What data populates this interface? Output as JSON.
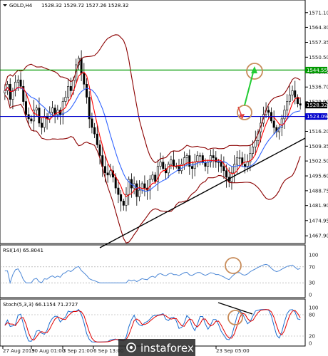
{
  "header": {
    "symbol": "GOLD,H4",
    "ohlc": "1528.32 1529.72 1527.26 1528.32"
  },
  "price_axis": {
    "ticks": [
      "1571.10",
      "1564.30",
      "1557.35",
      "1550.50",
      "1543.65",
      "1536.70",
      "1529.90",
      "1523.00",
      "1516.20",
      "1509.35",
      "1502.50",
      "1495.60",
      "1488.75",
      "1481.90",
      "1474.95",
      "1467.90"
    ],
    "current_price_tag": "1528.32",
    "hline_upper_tag": "1544.55",
    "hline_lower_tag": "1523.09"
  },
  "rsi": {
    "label": "RSI(14) 65.8041",
    "ticks": [
      "100",
      "70",
      "30",
      "0"
    ]
  },
  "stoch": {
    "label": "Stoch(5,3,3) 66.1154 71.2727",
    "ticks": [
      "100",
      "80",
      "20",
      "0"
    ]
  },
  "time_axis": {
    "labels": [
      "27 Aug 2019",
      "30 Aug 01:00",
      "3 Sep 21:00",
      "6 Sep 13:00",
      "",
      "",
      "",
      "23 Sep 05:00"
    ]
  },
  "watermark": {
    "text": "instaforex"
  },
  "colors": {
    "upper_line": "#009900",
    "lower_line": "#0000cc",
    "bollinger": "#8b0000",
    "ma_fast": "#ff0000",
    "ma_slow": "#3366ff",
    "rsi_line": "#4d88d6",
    "stoch_main": "#1c6fd0",
    "stoch_signal": "#e00000",
    "circle": "#c88c5a",
    "arrow_up": "#22cc33",
    "arrow_down": "#e04040",
    "trendline": "#000000",
    "watermark_bg": "#2a2a2a"
  },
  "chart_data": {
    "type": "candlestick",
    "symbol": "GOLD",
    "timeframe": "H4",
    "y_range": [
      1467.9,
      1571.1
    ],
    "horizontal_levels": [
      1544.55,
      1523.09
    ],
    "last_price": 1528.32,
    "close_path": [
      1535,
      1538,
      1531,
      1535,
      1539,
      1540,
      1537,
      1530,
      1524,
      1522,
      1521,
      1526,
      1527,
      1520,
      1518,
      1523,
      1522,
      1525,
      1527,
      1524,
      1526,
      1524,
      1530,
      1532,
      1537,
      1535,
      1540,
      1547,
      1550,
      1543,
      1538,
      1532,
      1522,
      1518,
      1515,
      1510,
      1505,
      1500,
      1497,
      1496,
      1498,
      1495,
      1490,
      1487,
      1484,
      1482,
      1487,
      1494,
      1490,
      1492,
      1486,
      1489,
      1492,
      1490,
      1489,
      1494,
      1496,
      1493,
      1500,
      1502,
      1499,
      1497,
      1501,
      1503,
      1500,
      1500,
      1498,
      1501,
      1504,
      1505,
      1500,
      1499,
      1502,
      1505,
      1505,
      1502,
      1500,
      1502,
      1505,
      1504,
      1502,
      1502,
      1500,
      1498,
      1495,
      1493,
      1497,
      1501,
      1504,
      1504,
      1501,
      1500,
      1502,
      1506,
      1509,
      1512,
      1516,
      1520,
      1524,
      1526,
      1525,
      1521,
      1518,
      1516,
      1518,
      1522,
      1526,
      1530,
      1533,
      1535,
      1532,
      1529,
      1528.3
    ],
    "rsi_current": 65.8041,
    "stoch_main_current": 66.1154,
    "stoch_signal_current": 71.2727
  }
}
